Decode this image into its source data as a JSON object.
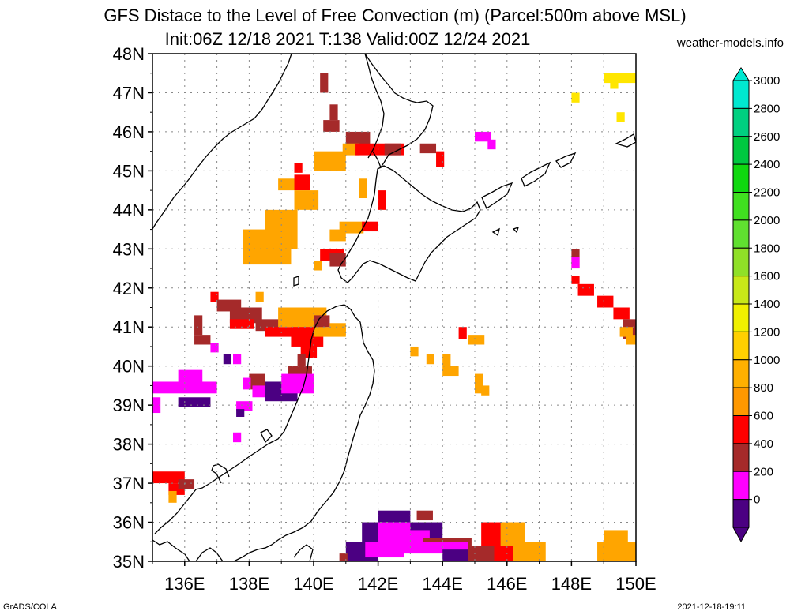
{
  "title_line1": "GFS Distace to the Level of Free Convection (m) (Parcel:500m above MSL)",
  "title_line2": "Init:06Z 12/18 2021 T:138 Valid:00Z 12/24 2021",
  "site": "weather-models.info",
  "footer_left": "GrADS/COLA",
  "footer_right": "2021-12-18-19:11",
  "map": {
    "lat_labels": [
      "48N",
      "47N",
      "46N",
      "45N",
      "44N",
      "43N",
      "42N",
      "41N",
      "40N",
      "39N",
      "38N",
      "37N",
      "36N",
      "35N"
    ],
    "lon_labels": [
      "136E",
      "138E",
      "140E",
      "142E",
      "144E",
      "146E",
      "148E",
      "150E"
    ]
  },
  "colorbar": {
    "labels": [
      "3000",
      "2800",
      "2600",
      "2400",
      "2200",
      "2000",
      "1800",
      "1600",
      "1400",
      "1200",
      "1000",
      "800",
      "600",
      "400",
      "200",
      "0"
    ],
    "colors": [
      "#00e8d0",
      "#00d080",
      "#00c840",
      "#10d810",
      "#40e020",
      "#60e030",
      "#90e028",
      "#c8e818",
      "#f0f000",
      "#ffd000",
      "#ffb000",
      "#ff9800",
      "#ff0000",
      "#a52a2a",
      "#ff00ff",
      "#4b0082"
    ]
  },
  "colors": {
    "orange": "#ffa500",
    "orange_light": "#ffb400",
    "yellow": "#ffe600",
    "red": "#ff0000",
    "brown": "#a52a2a",
    "magenta": "#ff00ff",
    "indigo": "#4b0082"
  }
}
